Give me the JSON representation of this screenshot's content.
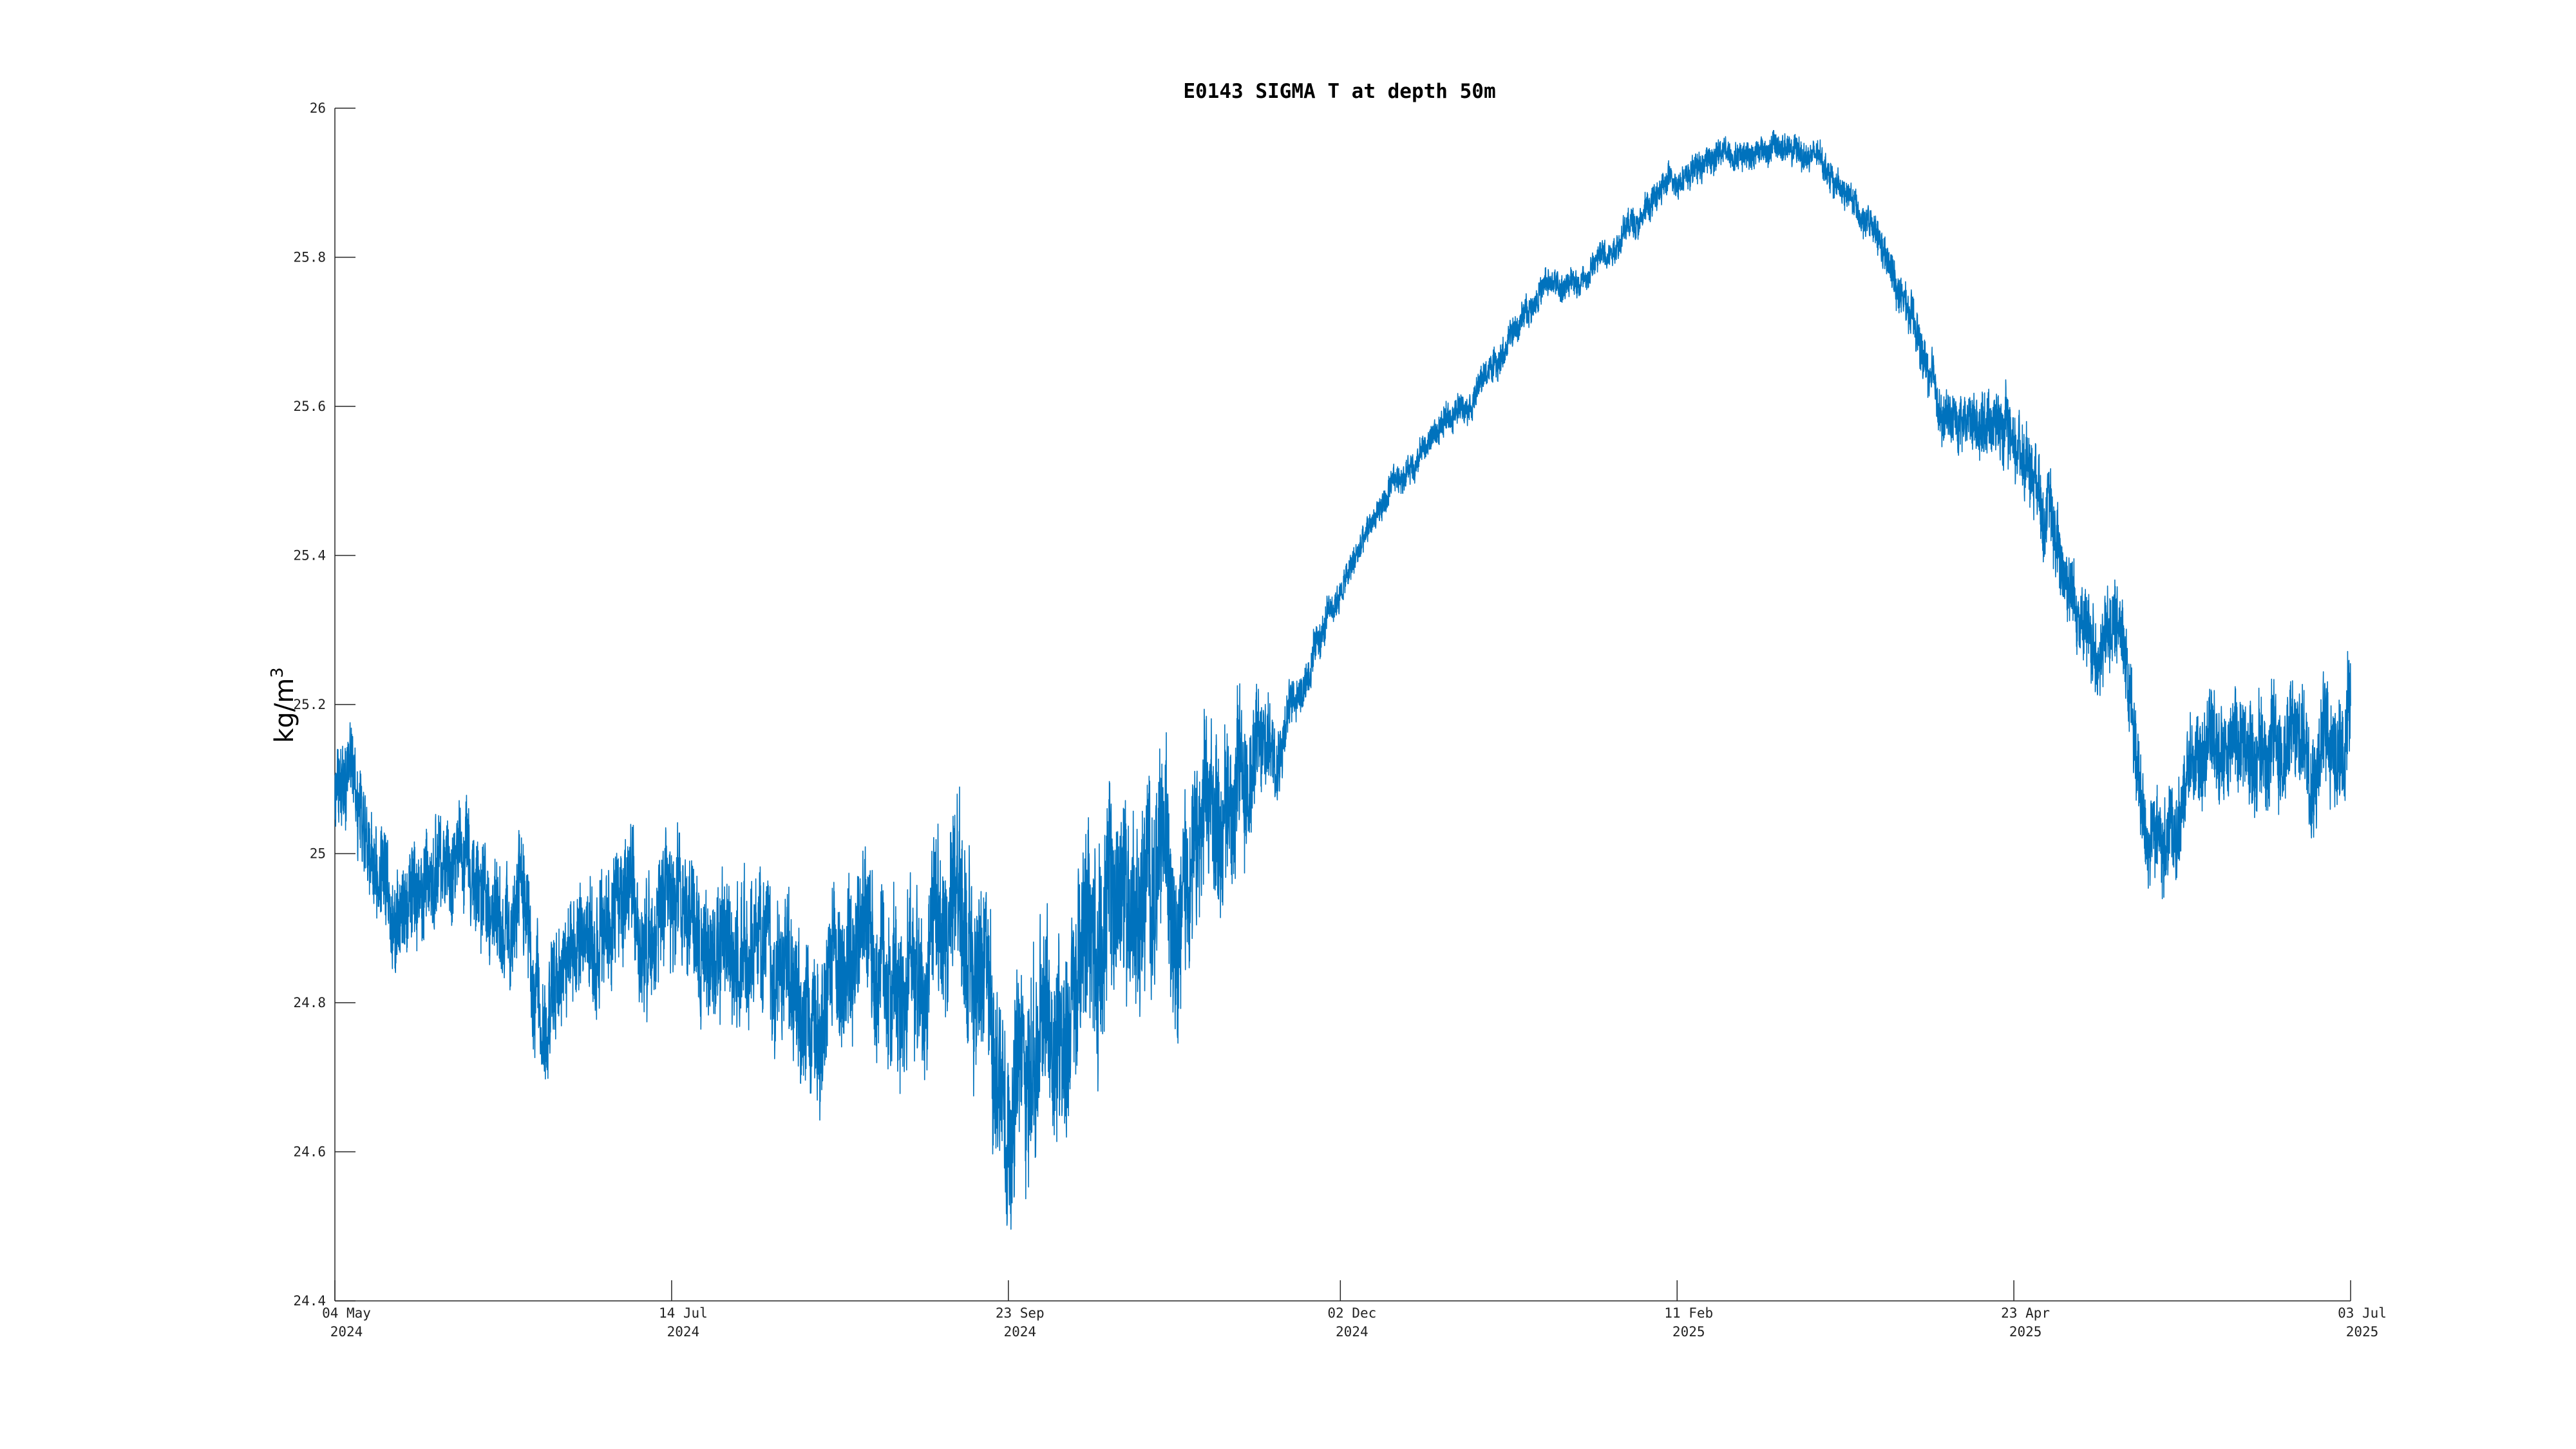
{
  "chart_data": {
    "type": "line",
    "title": "E0143 SIGMA T at depth 50m",
    "xlabel": "",
    "ylabel": "kg/m",
    "ylabel_superscript": "3",
    "xlim": [
      "2024-05-04",
      "2025-07-03"
    ],
    "ylim": [
      24.4,
      26
    ],
    "grid": false,
    "legend": "none",
    "series_color": "#0072BD",
    "y_ticks": [
      "24.4",
      "24.6",
      "24.8",
      "25",
      "25.2",
      "25.4",
      "25.6",
      "25.8",
      "26"
    ],
    "x_ticks": [
      {
        "date": "2024-05-04",
        "line1": "04 May",
        "line2": "2024"
      },
      {
        "date": "2024-07-14",
        "line1": "14 Jul",
        "line2": "2024"
      },
      {
        "date": "2024-09-23",
        "line1": "23 Sep",
        "line2": "2024"
      },
      {
        "date": "2024-12-02",
        "line1": "02 Dec",
        "line2": "2024"
      },
      {
        "date": "2025-02-11",
        "line1": "11 Feb",
        "line2": "2025"
      },
      {
        "date": "2025-04-23",
        "line1": "23 Apr",
        "line2": "2025"
      },
      {
        "date": "2025-07-03",
        "line1": "03 Jul",
        "line2": "2025"
      }
    ],
    "series": [
      {
        "name": "",
        "trend": [
          [
            "2024-05-04",
            25.07
          ],
          [
            "2024-05-08",
            25.12
          ],
          [
            "2024-05-10",
            25.05
          ],
          [
            "2024-05-16",
            24.93
          ],
          [
            "2024-05-24",
            24.97
          ],
          [
            "2024-05-28",
            25.0
          ],
          [
            "2024-06-04",
            24.93
          ],
          [
            "2024-06-12",
            24.92
          ],
          [
            "2024-06-17",
            24.8
          ],
          [
            "2024-06-25",
            24.88
          ],
          [
            "2024-07-03",
            24.88
          ],
          [
            "2024-07-14",
            24.93
          ],
          [
            "2024-07-24",
            24.88
          ],
          [
            "2024-08-03",
            24.86
          ],
          [
            "2024-08-13",
            24.81
          ],
          [
            "2024-08-23",
            24.84
          ],
          [
            "2024-09-02",
            24.86
          ],
          [
            "2024-09-10",
            24.92
          ],
          [
            "2024-09-17",
            24.82
          ],
          [
            "2024-09-23",
            24.7
          ],
          [
            "2024-09-28",
            24.72
          ],
          [
            "2024-10-05",
            24.8
          ],
          [
            "2024-10-13",
            24.92
          ],
          [
            "2024-10-23",
            24.96
          ],
          [
            "2024-11-02",
            25.0
          ],
          [
            "2024-11-10",
            25.1
          ],
          [
            "2024-11-17",
            25.15
          ],
          [
            "2024-11-24",
            25.23
          ],
          [
            "2024-12-02",
            25.35
          ],
          [
            "2024-12-10",
            25.46
          ],
          [
            "2024-12-20",
            25.55
          ],
          [
            "2024-12-30",
            25.62
          ],
          [
            "2025-01-06",
            25.68
          ],
          [
            "2025-01-13",
            25.76
          ],
          [
            "2025-01-20",
            25.76
          ],
          [
            "2025-01-30",
            25.83
          ],
          [
            "2025-02-11",
            25.91
          ],
          [
            "2025-02-21",
            25.94
          ],
          [
            "2025-03-03",
            25.95
          ],
          [
            "2025-03-13",
            25.93
          ],
          [
            "2025-03-23",
            25.85
          ],
          [
            "2025-04-01",
            25.72
          ],
          [
            "2025-04-08",
            25.58
          ],
          [
            "2025-04-18",
            25.59
          ],
          [
            "2025-04-28",
            25.52
          ],
          [
            "2025-05-03",
            25.4
          ],
          [
            "2025-05-09",
            25.27
          ],
          [
            "2025-05-16",
            25.31
          ],
          [
            "2025-05-20",
            25.05
          ],
          [
            "2025-05-26",
            25.0
          ],
          [
            "2025-06-01",
            25.15
          ],
          [
            "2025-06-10",
            25.15
          ],
          [
            "2025-06-20",
            25.15
          ],
          [
            "2025-07-03",
            25.17
          ]
        ],
        "noise_amplitude": [
          [
            "2024-05-04",
            0.06
          ],
          [
            "2024-06-30",
            0.08
          ],
          [
            "2024-08-20",
            0.1
          ],
          [
            "2024-09-23",
            0.13
          ],
          [
            "2024-10-15",
            0.14
          ],
          [
            "2024-11-12",
            0.1
          ],
          [
            "2024-11-22",
            0.03
          ],
          [
            "2024-12-05",
            0.02
          ],
          [
            "2025-03-20",
            0.02
          ],
          [
            "2025-04-25",
            0.05
          ],
          [
            "2025-05-20",
            0.06
          ],
          [
            "2025-07-03",
            0.08
          ]
        ]
      }
    ]
  }
}
